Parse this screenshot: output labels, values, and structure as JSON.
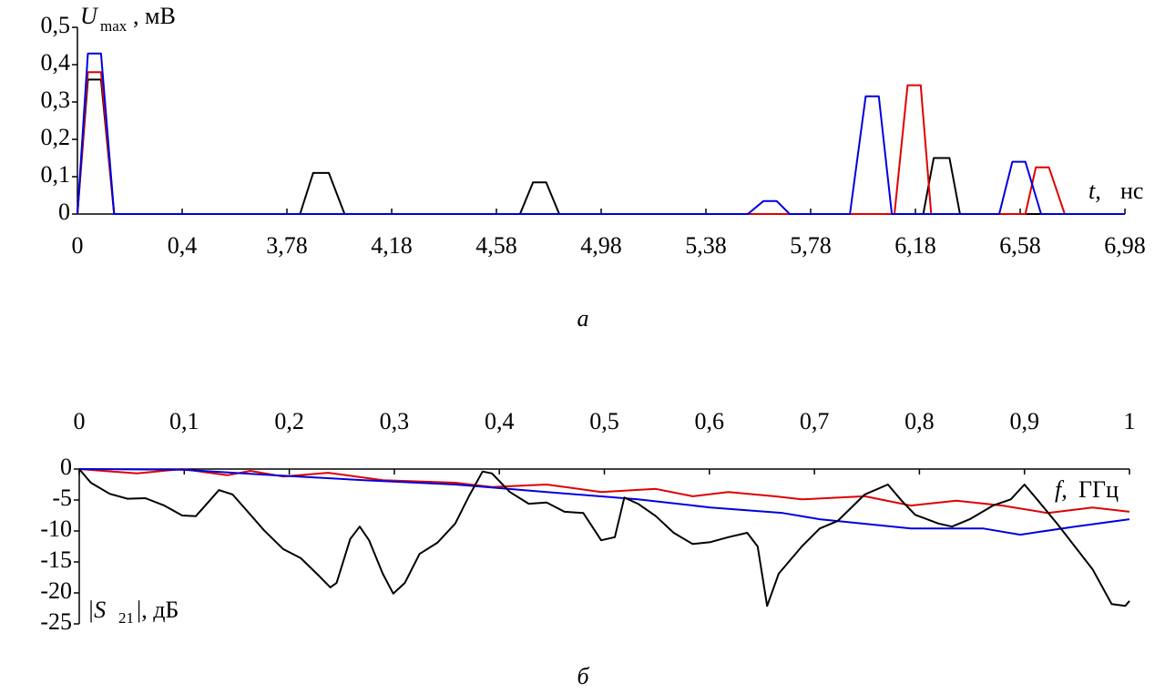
{
  "chart_data": [
    {
      "type": "line",
      "caption": "а",
      "x_axis_break": true,
      "x_axis_position": "bottom",
      "y_label": {
        "symbol": "U",
        "subscript": "max",
        "unit": ", мВ"
      },
      "x_label": {
        "symbol": "t,",
        "unit": "нс"
      },
      "xlim": [
        0,
        6.98
      ],
      "xticks": [
        0,
        {
          "value": 0.4,
          "label": "0,4"
        },
        {
          "value": 3.78,
          "label": "3,78"
        },
        {
          "value": 4.18,
          "label": "4,18"
        },
        {
          "value": 4.58,
          "label": "4,58"
        },
        {
          "value": 4.98,
          "label": "4,98"
        },
        {
          "value": 5.38,
          "label": "5,38"
        },
        {
          "value": 5.78,
          "label": "5,78"
        },
        {
          "value": 6.18,
          "label": "6,18"
        },
        {
          "value": 6.58,
          "label": "6,58"
        },
        {
          "value": 6.98,
          "label": "6,98"
        }
      ],
      "ylim": [
        0,
        0.5
      ],
      "yticks": [
        0,
        {
          "value": 0.1,
          "label": "0,1"
        },
        {
          "value": 0.2,
          "label": "0,2"
        },
        {
          "value": 0.3,
          "label": "0,3"
        },
        {
          "value": 0.4,
          "label": "0,4"
        },
        {
          "value": 0.5,
          "label": "0,5"
        }
      ],
      "series": [
        {
          "color": "#000000",
          "x": [
            0,
            0.04,
            0.09,
            0.14,
            3.83,
            3.88,
            3.94,
            4.0,
            4.67,
            4.72,
            4.77,
            4.82,
            6.21,
            6.25,
            6.31,
            6.35,
            6.98
          ],
          "values": [
            0,
            0.36,
            0.36,
            0,
            0,
            0.11,
            0.11,
            0,
            0,
            0.085,
            0.085,
            0,
            0,
            0.15,
            0.15,
            0,
            0
          ]
        },
        {
          "color": "#e00000",
          "x": [
            0,
            0.04,
            0.09,
            0.14,
            6.1,
            6.15,
            6.2,
            6.24,
            6.6,
            6.64,
            6.69,
            6.75,
            6.98
          ],
          "values": [
            0,
            0.38,
            0.38,
            0,
            0,
            0.345,
            0.345,
            0,
            0,
            0.125,
            0.125,
            0,
            0
          ]
        },
        {
          "color": "#0000e0",
          "x": [
            0,
            0.04,
            0.09,
            0.14,
            5.54,
            5.6,
            5.65,
            5.7,
            5.93,
            5.99,
            6.04,
            6.09,
            6.5,
            6.55,
            6.6,
            6.66,
            6.98
          ],
          "values": [
            0,
            0.43,
            0.43,
            0,
            0,
            0.035,
            0.035,
            0,
            0,
            0.315,
            0.315,
            0,
            0,
            0.14,
            0.14,
            0,
            0
          ]
        }
      ]
    },
    {
      "type": "line",
      "caption": "б",
      "x_axis_break": false,
      "x_axis_position": "top",
      "y_label": {
        "symbol": "|S",
        "subscript": "21",
        "unit": "|, дБ"
      },
      "x_label": {
        "symbol": "f,",
        "unit": "ГГц"
      },
      "xlim": [
        0,
        1
      ],
      "xticks": [
        0,
        {
          "value": 0.1,
          "label": "0,1"
        },
        {
          "value": 0.2,
          "label": "0,2"
        },
        {
          "value": 0.3,
          "label": "0,3"
        },
        {
          "value": 0.4,
          "label": "0,4"
        },
        {
          "value": 0.5,
          "label": "0,5"
        },
        {
          "value": 0.6,
          "label": "0,6"
        },
        {
          "value": 0.7,
          "label": "0,7"
        },
        {
          "value": 0.8,
          "label": "0,8"
        },
        {
          "value": 0.9,
          "label": "0,9"
        },
        1
      ],
      "ylim": [
        -25,
        0
      ],
      "yticks": [
        0,
        -5,
        -10,
        -15,
        -20,
        -25
      ],
      "series": [
        {
          "color": "#e00000",
          "x": [
            0,
            0.055,
            0.098,
            0.141,
            0.163,
            0.194,
            0.237,
            0.289,
            0.358,
            0.393,
            0.445,
            0.497,
            0.549,
            0.584,
            0.618,
            0.662,
            0.688,
            0.748,
            0.792,
            0.835,
            0.879,
            0.922,
            0.965,
            1
          ],
          "values": [
            0,
            -0.7,
            0,
            -1,
            -0.3,
            -1.2,
            -0.6,
            -1.8,
            -2.2,
            -2.9,
            -2.5,
            -3.7,
            -3.2,
            -4.4,
            -3.7,
            -4.4,
            -4.9,
            -4.4,
            -5.9,
            -5.1,
            -5.9,
            -7.1,
            -6.2,
            -6.9
          ]
        },
        {
          "color": "#0000e0",
          "x": [
            0,
            0.098,
            0.185,
            0.271,
            0.358,
            0.445,
            0.532,
            0.601,
            0.67,
            0.705,
            0.792,
            0.861,
            0.896,
            0.948,
            1
          ],
          "values": [
            0,
            -0.1,
            -1,
            -1.8,
            -2.5,
            -3.7,
            -4.9,
            -6.2,
            -7.1,
            -8.1,
            -9.6,
            -9.6,
            -10.6,
            -9.3,
            -8.1
          ]
        },
        {
          "color": "#000000",
          "x": [
            0,
            0.011,
            0.029,
            0.046,
            0.063,
            0.081,
            0.098,
            0.111,
            0.12,
            0.133,
            0.146,
            0.159,
            0.176,
            0.194,
            0.211,
            0.228,
            0.239,
            0.245,
            0.258,
            0.267,
            0.276,
            0.289,
            0.299,
            0.31,
            0.324,
            0.341,
            0.358,
            0.371,
            0.384,
            0.393,
            0.41,
            0.428,
            0.445,
            0.462,
            0.48,
            0.497,
            0.51,
            0.519,
            0.532,
            0.549,
            0.566,
            0.584,
            0.601,
            0.618,
            0.636,
            0.646,
            0.655,
            0.666,
            0.688,
            0.705,
            0.722,
            0.748,
            0.77,
            0.783,
            0.796,
            0.818,
            0.831,
            0.848,
            0.87,
            0.887,
            0.9,
            0.913,
            0.931,
            0.948,
            0.965,
            0.983,
            0.996,
            1
          ],
          "values": [
            0,
            -2.2,
            -4,
            -4.8,
            -4.7,
            -5.9,
            -7.5,
            -7.6,
            -5.9,
            -3.4,
            -4.1,
            -6.6,
            -9.9,
            -12.9,
            -14.4,
            -17.2,
            -19.1,
            -18.4,
            -11.3,
            -9.3,
            -11.5,
            -16.9,
            -20.1,
            -18.4,
            -13.7,
            -11.9,
            -8.8,
            -4.4,
            -0.4,
            -0.7,
            -3.7,
            -5.6,
            -5.4,
            -6.9,
            -7.1,
            -11.5,
            -11,
            -4.6,
            -5.6,
            -7.6,
            -10.3,
            -12.1,
            -11.8,
            -11,
            -10.3,
            -12.5,
            -22.1,
            -16.9,
            -12.5,
            -9.6,
            -8.4,
            -4.1,
            -2.5,
            -5.1,
            -7.4,
            -8.8,
            -9.3,
            -8.1,
            -5.9,
            -4.9,
            -2.5,
            -5.1,
            -8.8,
            -12.5,
            -16.2,
            -21.8,
            -22.1,
            -21.3
          ]
        }
      ]
    }
  ]
}
